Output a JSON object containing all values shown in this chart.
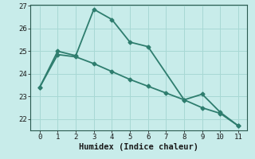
{
  "line1_x": [
    0,
    1,
    2,
    3,
    4,
    5,
    6,
    8,
    9,
    10,
    11
  ],
  "line1_y": [
    23.4,
    25.0,
    24.8,
    26.85,
    26.4,
    25.4,
    25.2,
    22.85,
    23.1,
    22.3,
    21.7
  ],
  "line2_x": [
    0,
    1,
    2,
    3,
    4,
    5,
    6,
    7,
    8,
    9,
    10,
    11
  ],
  "line2_y": [
    23.4,
    24.85,
    24.75,
    24.45,
    24.1,
    23.75,
    23.45,
    23.15,
    22.85,
    22.5,
    22.25,
    21.7
  ],
  "line_color": "#2e7d6e",
  "background_color": "#c8ecea",
  "grid_color": "#a8d8d4",
  "xlabel": "Humidex (Indice chaleur)",
  "xlim": [
    -0.5,
    11.5
  ],
  "ylim": [
    21.5,
    27.05
  ],
  "yticks": [
    22,
    23,
    24,
    25,
    26,
    27
  ],
  "xticks": [
    0,
    1,
    2,
    3,
    4,
    5,
    6,
    7,
    8,
    9,
    10,
    11
  ],
  "tick_fontsize": 6.5,
  "label_fontsize": 7.5,
  "line_width": 1.3,
  "marker": "D",
  "marker_size": 2.5
}
